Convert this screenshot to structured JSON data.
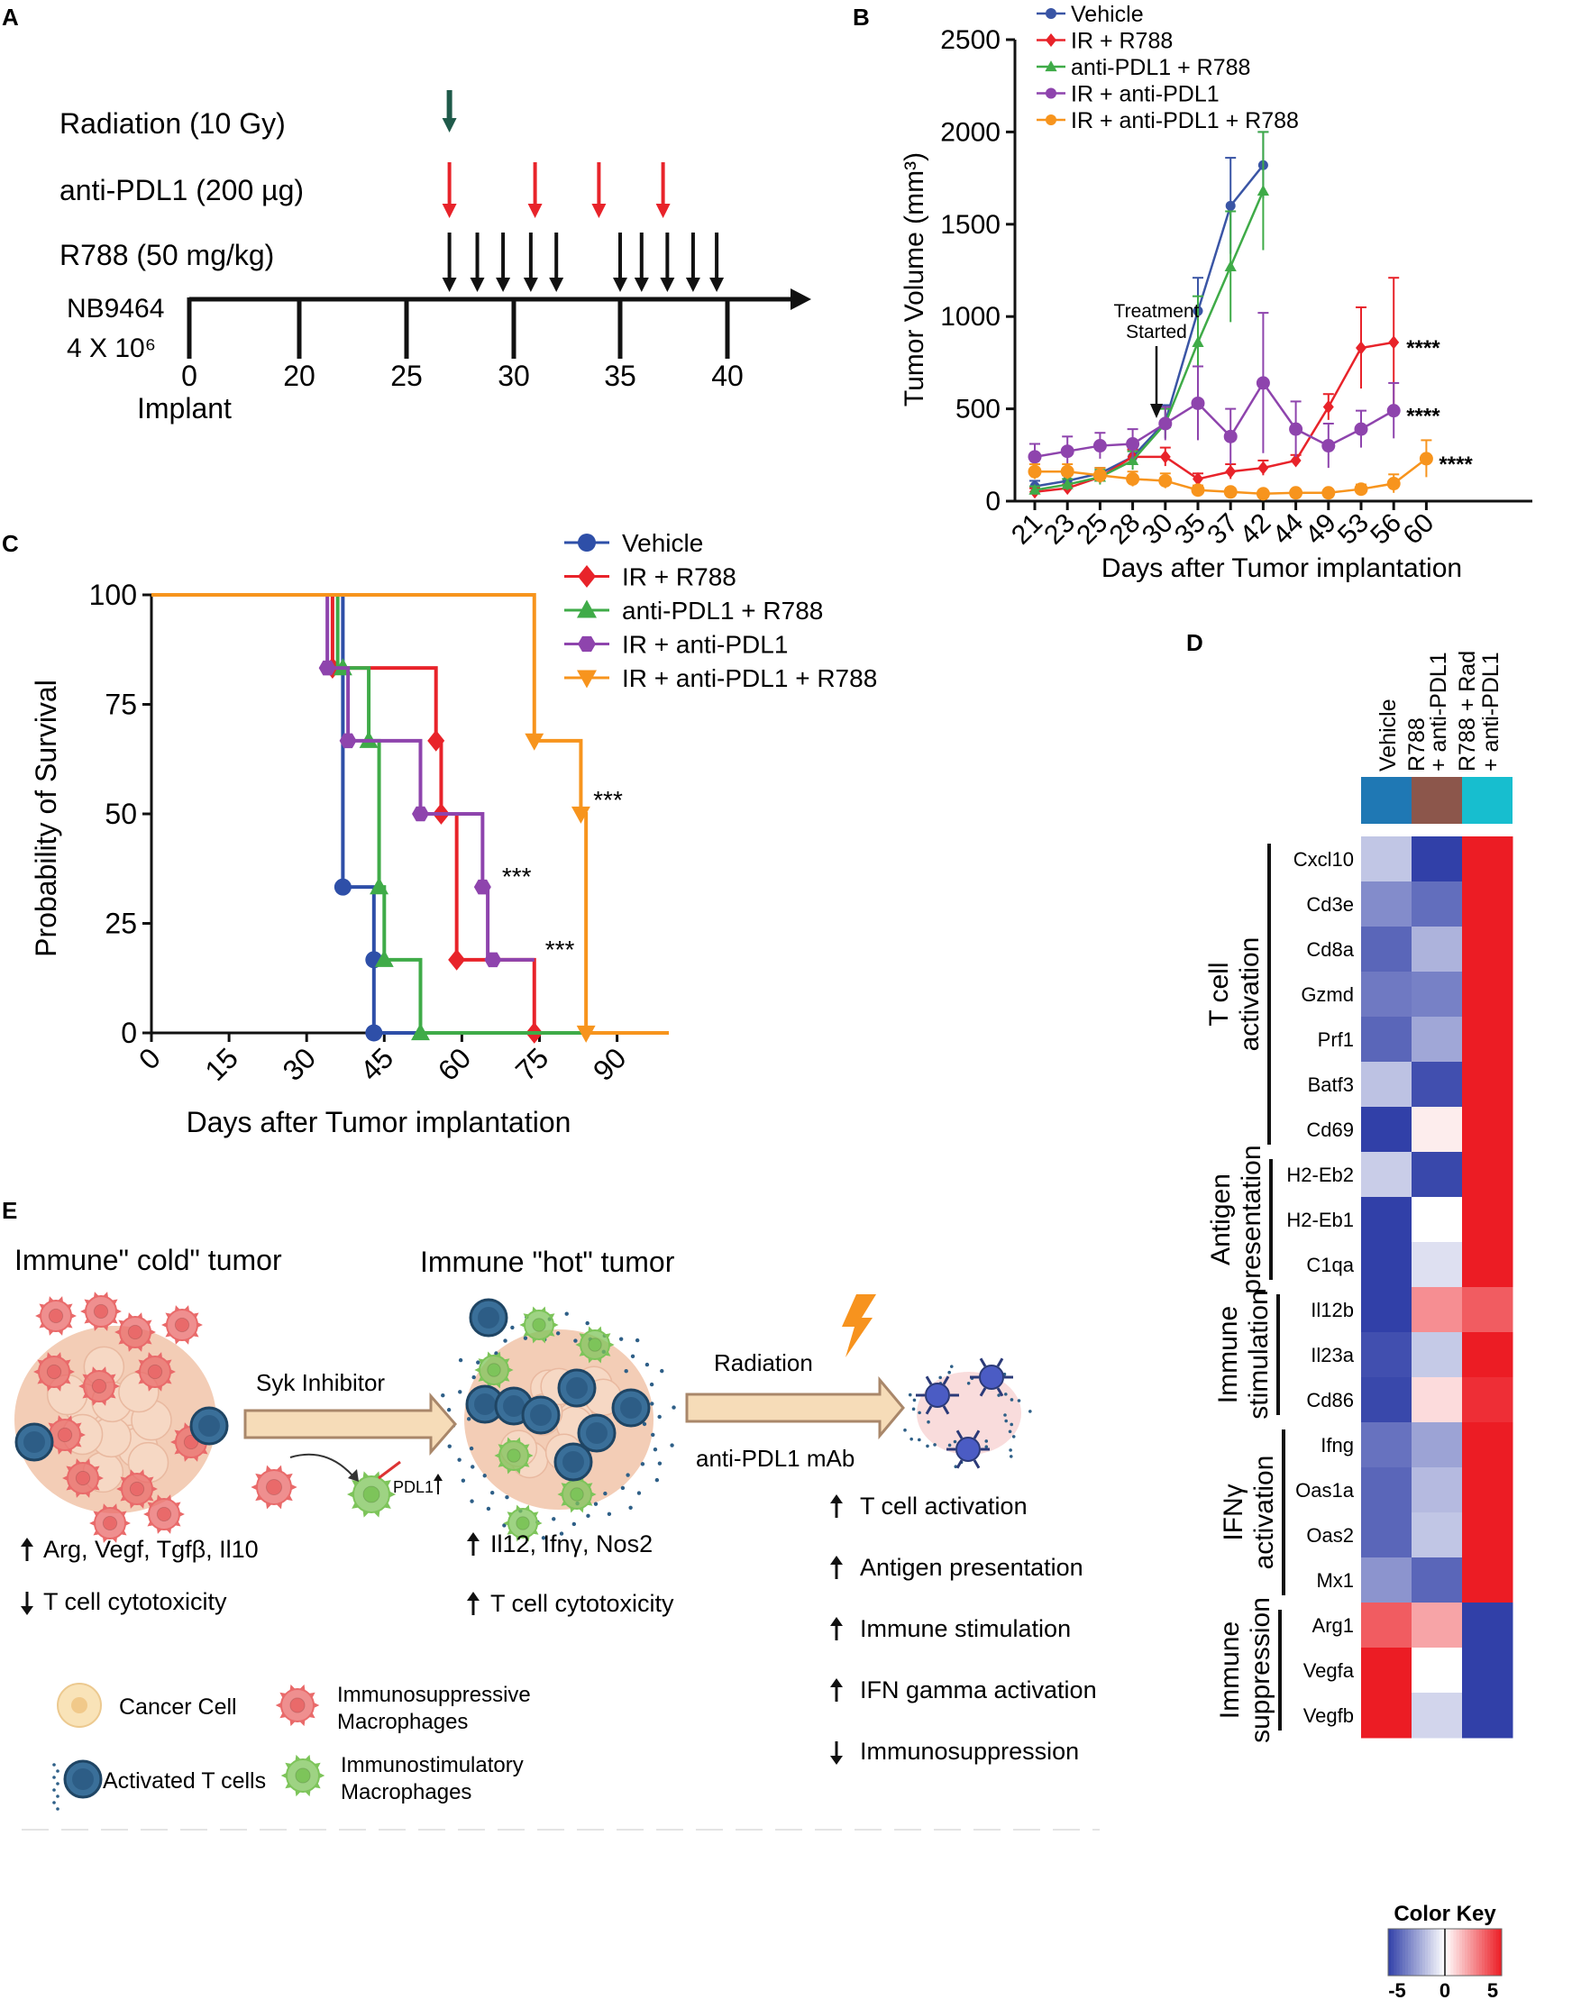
{
  "panelA": {
    "letter": "A",
    "rows": [
      {
        "label": "Radiation (10 Gy)",
        "color": "#1f5a4a",
        "days": [
          27
        ]
      },
      {
        "label": "anti-PDL1 (200 µg)",
        "color": "#e8232a",
        "days": [
          27,
          31,
          34,
          37
        ]
      },
      {
        "label": "R788 (50 mg/kg)",
        "color": "#111111",
        "days": [
          27,
          28.3,
          29.5,
          30.8,
          32,
          35,
          36,
          37.2,
          38.4,
          39.5
        ]
      }
    ],
    "model_line1": "NB9464",
    "model_line2": "4 X 10⁶",
    "ticks": [
      0,
      20,
      25,
      30,
      35,
      40
    ],
    "implant_label": "Implant"
  },
  "panelB": {
    "letter": "B",
    "annotation_line1": "Treatment",
    "annotation_line2": "Started",
    "sig_labels": [
      {
        "series": 1,
        "text": "****"
      },
      {
        "series": 3,
        "text": "****"
      },
      {
        "series": 4,
        "text": "****"
      }
    ],
    "chart_data": {
      "type": "line",
      "xlabel": "Days after Tumor implantation",
      "ylabel": "Tumor Volume (mm³)",
      "categories": [
        "21",
        "23",
        "25",
        "28",
        "30",
        "35",
        "37",
        "42",
        "44",
        "49",
        "53",
        "56",
        "60"
      ],
      "y_ticks": [
        0,
        500,
        1000,
        1500,
        2000,
        2500
      ],
      "ylim": [
        0,
        2500
      ],
      "series": [
        {
          "name": "Vehicle",
          "color": "#3a55a5",
          "marker": "circle",
          "values": [
            80,
            110,
            150,
            240,
            430,
            1030,
            1600,
            1820,
            null,
            null,
            null,
            null,
            null
          ],
          "errors": [
            30,
            30,
            30,
            40,
            90,
            180,
            260,
            180,
            null,
            null,
            null,
            null,
            null
          ]
        },
        {
          "name": "IR + R788",
          "color": "#e8232a",
          "marker": "diamond",
          "values": [
            50,
            70,
            130,
            240,
            240,
            120,
            160,
            180,
            220,
            510,
            830,
            860,
            null
          ],
          "errors": [
            20,
            20,
            30,
            40,
            50,
            30,
            40,
            40,
            30,
            70,
            220,
            350,
            null
          ]
        },
        {
          "name": "anti-PDL1 + R788",
          "color": "#3fab48",
          "marker": "triangle",
          "values": [
            60,
            90,
            130,
            220,
            420,
            860,
            1270,
            1680,
            null,
            null,
            null,
            null,
            null
          ],
          "errors": [
            20,
            30,
            40,
            50,
            80,
            250,
            300,
            320,
            null,
            null,
            null,
            null,
            null
          ]
        },
        {
          "name": "IR + anti-PDL1",
          "color": "#8e44ad",
          "marker": "circle",
          "values": [
            240,
            270,
            300,
            310,
            420,
            530,
            350,
            640,
            390,
            300,
            390,
            490,
            null
          ],
          "errors": [
            70,
            80,
            70,
            80,
            90,
            200,
            150,
            380,
            150,
            120,
            100,
            150,
            null
          ]
        },
        {
          "name": "IR + anti-PDL1 + R788",
          "color": "#f7941d",
          "marker": "circle",
          "values": [
            160,
            160,
            140,
            120,
            110,
            60,
            50,
            40,
            45,
            45,
            65,
            95,
            230
          ],
          "errors": [
            40,
            40,
            40,
            40,
            40,
            25,
            20,
            15,
            15,
            15,
            25,
            50,
            100
          ]
        }
      ]
    }
  },
  "panelC": {
    "letter": "C",
    "sig_labels": [
      {
        "series": 3,
        "text": "***"
      },
      {
        "series": 1,
        "text": "***"
      },
      {
        "series": 4,
        "text": "***"
      }
    ],
    "chart_data": {
      "type": "line",
      "subtype": "kaplan-meier",
      "xlabel": "Days after Tumor implantation",
      "ylabel": "Probability of Survival",
      "x_ticks": [
        0,
        15,
        30,
        45,
        60,
        75,
        90
      ],
      "y_ticks": [
        0,
        25,
        50,
        75,
        100
      ],
      "xlim": [
        0,
        100
      ],
      "ylim": [
        0,
        100
      ],
      "series": [
        {
          "name": "Vehicle",
          "color": "#2e4fa8",
          "marker": "circle",
          "steps": [
            [
              0,
              100
            ],
            [
              37,
              100
            ],
            [
              37,
              33.3
            ],
            [
              43,
              33.3
            ],
            [
              43,
              0
            ],
            [
              100,
              0
            ]
          ],
          "markers": [
            [
              37,
              33.3
            ],
            [
              43,
              16.7
            ],
            [
              43,
              0
            ]
          ]
        },
        {
          "name": "IR + R788",
          "color": "#e8232a",
          "marker": "diamond",
          "steps": [
            [
              0,
              100
            ],
            [
              35,
              100
            ],
            [
              35,
              83.3
            ],
            [
              55,
              83.3
            ],
            [
              55,
              66.7
            ],
            [
              56,
              66.7
            ],
            [
              56,
              50
            ],
            [
              59,
              50
            ],
            [
              59,
              16.7
            ],
            [
              74,
              16.7
            ],
            [
              74,
              0
            ],
            [
              100,
              0
            ]
          ],
          "markers": [
            [
              35,
              83.3
            ],
            [
              55,
              66.7
            ],
            [
              56,
              50
            ],
            [
              59,
              16.7
            ],
            [
              74,
              0
            ]
          ]
        },
        {
          "name": "anti-PDL1 + R788",
          "color": "#3fab48",
          "marker": "triangle",
          "steps": [
            [
              0,
              100
            ],
            [
              36,
              100
            ],
            [
              36,
              83.3
            ],
            [
              42,
              83.3
            ],
            [
              42,
              66.7
            ],
            [
              44,
              66.7
            ],
            [
              44,
              33.3
            ],
            [
              45,
              33.3
            ],
            [
              45,
              16.7
            ],
            [
              52,
              16.7
            ],
            [
              52,
              0
            ],
            [
              100,
              0
            ]
          ],
          "markers": [
            [
              37,
              83.3
            ],
            [
              42,
              66.7
            ],
            [
              44,
              33.3
            ],
            [
              45,
              16.7
            ],
            [
              52,
              0
            ]
          ]
        },
        {
          "name": "IR + anti-PDL1",
          "color": "#8e44ad",
          "marker": "hexagon",
          "steps": [
            [
              0,
              100
            ],
            [
              34,
              100
            ],
            [
              34,
              83.3
            ],
            [
              38,
              83.3
            ],
            [
              38,
              66.7
            ],
            [
              42,
              66.7
            ],
            [
              42,
              66.7
            ],
            [
              52,
              66.7
            ],
            [
              52,
              50
            ],
            [
              64,
              50
            ],
            [
              64,
              33.3
            ],
            [
              65,
              33.3
            ],
            [
              65,
              16.7
            ],
            [
              74,
              16.7
            ]
          ],
          "markers": [
            [
              34,
              83.3
            ],
            [
              38,
              66.7
            ],
            [
              52,
              50
            ],
            [
              64,
              33.3
            ],
            [
              66,
              16.7
            ]
          ]
        },
        {
          "name": "IR + anti-PDL1 + R788",
          "color": "#f7941d",
          "marker": "triangle-down",
          "steps": [
            [
              0,
              100
            ],
            [
              74,
              100
            ],
            [
              74,
              66.7
            ],
            [
              83,
              66.7
            ],
            [
              83,
              50
            ],
            [
              84,
              50
            ],
            [
              84,
              0
            ],
            [
              100,
              0
            ]
          ],
          "markers": [
            [
              74,
              66.7
            ],
            [
              83,
              50
            ],
            [
              84,
              0
            ]
          ]
        }
      ]
    }
  },
  "panelD": {
    "letter": "D",
    "colorkey_title": "Color Key",
    "colorkey_ticks": [
      "-5",
      "0",
      "5"
    ],
    "chart_data": {
      "type": "heatmap",
      "columns": [
        {
          "label": "Vehicle",
          "color": "#1f78b4"
        },
        {
          "label": "R788 + anti-PDL1",
          "color": "#8c564b"
        },
        {
          "label": "R788 + Rad + anti-PDL1",
          "color": "#17becf"
        }
      ],
      "rows": [
        "Cxcl10",
        "Cd3e",
        "Cd8a",
        "Gzmd",
        "Prf1",
        "Batf3",
        "Cd69",
        "H2-Eb2",
        "H2-Eb1",
        "C1qa",
        "Il12b",
        "Il23a",
        "Cd86",
        "Ifng",
        "Oas1a",
        "Oas2",
        "Mx1",
        "Arg1",
        "Vegfa",
        "Vegfb"
      ],
      "values": [
        [
          -1.5,
          -5,
          5
        ],
        [
          -3,
          -3.8,
          5
        ],
        [
          -4,
          -2,
          5
        ],
        [
          -3.5,
          -3.3,
          5
        ],
        [
          -4,
          -2.3,
          5
        ],
        [
          -1.6,
          -4.6,
          5
        ],
        [
          -5,
          0.4,
          5
        ],
        [
          -1.3,
          -4.8,
          5
        ],
        [
          -5,
          0,
          5
        ],
        [
          -5,
          -0.8,
          5
        ],
        [
          -5,
          2.5,
          3.6
        ],
        [
          -4.6,
          -1.4,
          5
        ],
        [
          -4.8,
          0.8,
          4.6
        ],
        [
          -3.7,
          -2.4,
          5
        ],
        [
          -4,
          -1.8,
          5
        ],
        [
          -4,
          -1.5,
          5
        ],
        [
          -2.8,
          -4,
          5
        ],
        [
          3.6,
          2,
          -5
        ],
        [
          5,
          0,
          -5
        ],
        [
          5,
          -1.1,
          -5
        ]
      ],
      "scale": [
        -5,
        5
      ],
      "groups": [
        {
          "label_line1": "T cell",
          "label_line2": "activation",
          "from": 0,
          "to": 6
        },
        {
          "label_line1": "Antigen",
          "label_line2": "presentation",
          "from": 7,
          "to": 9
        },
        {
          "label_line1": "Immune",
          "label_line2": "stimulation",
          "from": 10,
          "to": 12
        },
        {
          "label_line1": "IFNγ",
          "label_line2": "activation",
          "from": 13,
          "to": 16
        },
        {
          "label_line1": "Immune",
          "label_line2": "suppression",
          "from": 17,
          "to": 19
        }
      ]
    }
  },
  "panelE": {
    "letter": "E",
    "cold_title": "Immune\" cold\" tumor",
    "hot_title": "Immune \"hot\" tumor",
    "arrow1_label": "Syk Inhibitor",
    "pdl1_label": "PDL1",
    "arrow2_top": "Radiation",
    "arrow2_bottom": "anti-PDL1 mAb",
    "cold_effects": [
      {
        "dir": "up",
        "text": "Arg, Vegf, Tgfβ, Il10"
      },
      {
        "dir": "down",
        "text": "T cell cytotoxicity"
      }
    ],
    "hot_effects": [
      {
        "dir": "up",
        "text": "Il12, Ifnγ, Nos2"
      },
      {
        "dir": "up",
        "text": "T cell cytotoxicity"
      }
    ],
    "final_effects": [
      {
        "dir": "up",
        "text": "T cell activation"
      },
      {
        "dir": "up",
        "text": "Antigen presentation"
      },
      {
        "dir": "up",
        "text": "Immune stimulation"
      },
      {
        "dir": "up",
        "text": "IFN gamma activation"
      },
      {
        "dir": "down",
        "text": "Immunosuppression"
      }
    ],
    "legend": {
      "cancer": "Cancer Cell",
      "suppressive_line1": "Immunosuppressive",
      "suppressive_line2": "Macrophages",
      "tcell": "Activated T cells",
      "stimulatory_line1": "Immunostimulatory",
      "stimulatory_line2": "Macrophages"
    },
    "colors": {
      "tumor": "#f3cdb6",
      "macro_red": "#e96a6a",
      "macro_green": "#7dc45a",
      "tcell": "#2d5d86",
      "arrow_fill": "#f6dcb8",
      "arrow_stroke": "#a9876a",
      "bolt": "#f7931e"
    }
  }
}
